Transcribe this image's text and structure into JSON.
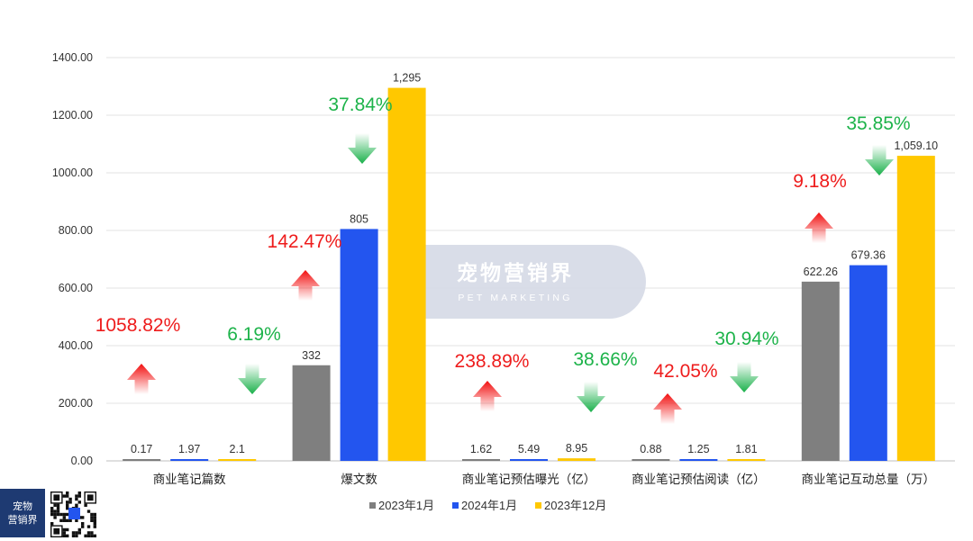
{
  "chart_data": {
    "type": "bar",
    "title": "",
    "xlabel": "",
    "ylabel": "",
    "ylim": [
      0,
      1400
    ],
    "yticks": [
      "0.00",
      "200.00",
      "400.00",
      "600.00",
      "800.00",
      "1000.00",
      "1200.00",
      "1400.00"
    ],
    "grid": true,
    "legend_position": "bottom",
    "categories": [
      "商业笔记篇数",
      "爆文数",
      "商业笔记预估曝光（亿）",
      "商业笔记预估阅读（亿）",
      "商业笔记互动总量（万）"
    ],
    "series": [
      {
        "name": "2023年1月",
        "color": "#7f7f7f",
        "values": [
          0.17,
          332,
          1.62,
          0.88,
          622.26
        ],
        "labels": [
          "0.17",
          "332",
          "1.62",
          "0.88",
          "622.26"
        ]
      },
      {
        "name": "2024年1月",
        "color": "#2355ef",
        "values": [
          1.97,
          805,
          5.49,
          1.25,
          679.36
        ],
        "labels": [
          "1.97",
          "805",
          "5.49",
          "1.25",
          "679.36"
        ]
      },
      {
        "name": "2023年12月",
        "color": "#ffc800",
        "values": [
          2.1,
          1295,
          8.95,
          1.81,
          1059.1
        ],
        "labels": [
          "2.1",
          "1,295",
          "8.95",
          "1.81",
          "1,059.10"
        ]
      }
    ],
    "annotations": [
      {
        "category": 0,
        "text": "1058.82%",
        "direction": "up",
        "color": "#ee1c1c"
      },
      {
        "category": 0,
        "text": "6.19%",
        "direction": "down",
        "color": "#1db34a"
      },
      {
        "category": 1,
        "text": "142.47%",
        "direction": "up",
        "color": "#ee1c1c"
      },
      {
        "category": 1,
        "text": "37.84%",
        "direction": "down",
        "color": "#1db34a"
      },
      {
        "category": 2,
        "text": "238.89%",
        "direction": "up",
        "color": "#ee1c1c"
      },
      {
        "category": 2,
        "text": "38.66%",
        "direction": "down",
        "color": "#1db34a"
      },
      {
        "category": 3,
        "text": "42.05%",
        "direction": "up",
        "color": "#ee1c1c"
      },
      {
        "category": 3,
        "text": "30.94%",
        "direction": "down",
        "color": "#1db34a"
      },
      {
        "category": 4,
        "text": "9.18%",
        "direction": "up",
        "color": "#ee1c1c"
      },
      {
        "category": 4,
        "text": "35.85%",
        "direction": "down",
        "color": "#1db34a"
      }
    ]
  },
  "watermark": {
    "title": "宠物营销界",
    "subtitle": "PET MARKETING"
  },
  "logo": {
    "line1": "宠物",
    "line2": "营销界",
    "qr_icon": "qr-code-icon"
  }
}
